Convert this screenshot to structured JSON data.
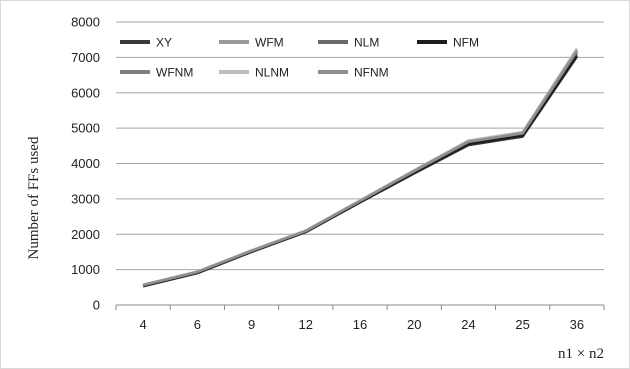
{
  "chart_data": {
    "type": "line",
    "title": "",
    "xlabel": "n1 × n2",
    "ylabel": "Number of FFs used",
    "categories": [
      "4",
      "6",
      "9",
      "12",
      "16",
      "20",
      "24",
      "25",
      "36"
    ],
    "ylim": [
      0,
      8000
    ],
    "yticks": [
      0,
      1000,
      2000,
      3000,
      4000,
      5000,
      6000,
      7000,
      8000
    ],
    "grid": true,
    "legend_position": "top-left",
    "series": [
      {
        "name": "XY",
        "color": "#3a3a3a",
        "values": [
          530,
          900,
          1500,
          2060,
          2900,
          3720,
          4520,
          4760,
          7020
        ]
      },
      {
        "name": "WFM",
        "color": "#9a9a9a",
        "values": [
          570,
          940,
          1540,
          2100,
          2950,
          3800,
          4640,
          4880,
          7230
        ]
      },
      {
        "name": "NLM",
        "color": "#6a6a6a",
        "values": [
          550,
          920,
          1520,
          2080,
          2920,
          3760,
          4580,
          4820,
          7120
        ]
      },
      {
        "name": "NFM",
        "color": "#1e1e1e",
        "values": [
          540,
          910,
          1510,
          2070,
          2910,
          3740,
          4550,
          4790,
          7060
        ]
      },
      {
        "name": "WFNM",
        "color": "#808080",
        "values": [
          560,
          930,
          1530,
          2090,
          2940,
          3780,
          4610,
          4850,
          7170
        ]
      },
      {
        "name": "NLNM",
        "color": "#bdbdbd",
        "values": [
          575,
          945,
          1545,
          2105,
          2955,
          3810,
          4650,
          4890,
          7250
        ]
      },
      {
        "name": "NFNM",
        "color": "#8f8f8f",
        "values": [
          565,
          935,
          1535,
          2095,
          2945,
          3790,
          4620,
          4860,
          7190
        ]
      }
    ]
  }
}
